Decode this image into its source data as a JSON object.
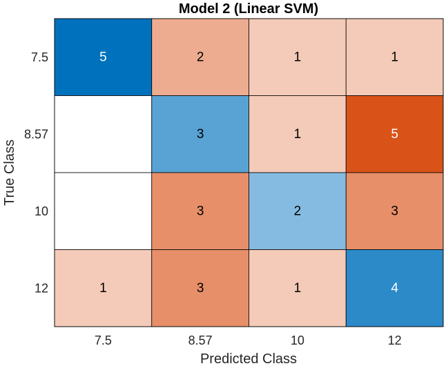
{
  "chart_data": {
    "type": "heatmap",
    "title": "Model 2 (Linear SVM)",
    "xlabel": "Predicted Class",
    "ylabel": "True Class",
    "x_categories": [
      "7.5",
      "8.57",
      "10",
      "12"
    ],
    "y_categories": [
      "7.5",
      "8.57",
      "10",
      "12"
    ],
    "matrix": [
      [
        5,
        2,
        1,
        1
      ],
      [
        null,
        3,
        1,
        5
      ],
      [
        null,
        3,
        2,
        3
      ],
      [
        1,
        3,
        1,
        4
      ]
    ],
    "colors": {
      "diag_low": "#DEEBF7",
      "diag_high": "#0072BD",
      "offdiag_low": "#FBE8E0",
      "offdiag_high": "#D95319",
      "empty": "#FFFFFF",
      "grid_line": "#000000",
      "light_text": "#FFFFFF",
      "dark_text": "#000000"
    }
  }
}
